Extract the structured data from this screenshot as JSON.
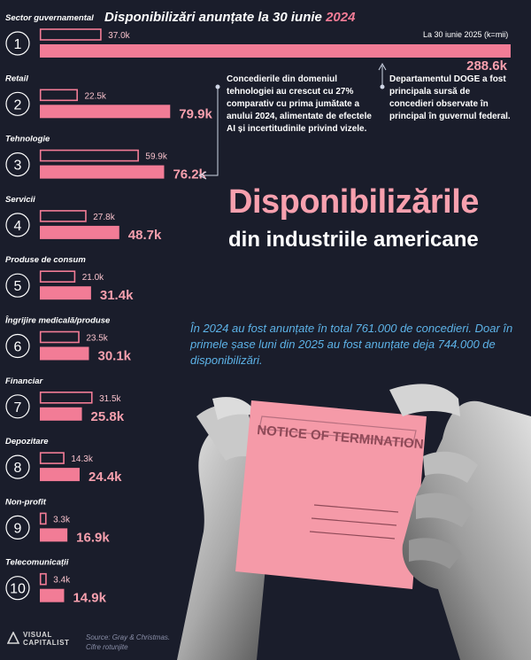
{
  "chart_data": {
    "type": "bar",
    "title": "Disponibilizări anunțate la 30 iunie",
    "title_year": "2024",
    "unit_note": "La 30 iunie 2025 (k=mii)",
    "categories": [
      {
        "rank": "1",
        "name": "Sector guvernamental"
      },
      {
        "rank": "2",
        "name": "Retail"
      },
      {
        "rank": "3",
        "name": "Tehnologie"
      },
      {
        "rank": "4",
        "name": "Servicii"
      },
      {
        "rank": "5",
        "name": "Produse de consum"
      },
      {
        "rank": "6",
        "name": "Îngrijire medicală/produse"
      },
      {
        "rank": "7",
        "name": "Financiar"
      },
      {
        "rank": "8",
        "name": "Depozitare"
      },
      {
        "rank": "9",
        "name": "Non-profit"
      },
      {
        "rank": "10",
        "name": "Telecomunicații"
      }
    ],
    "series": [
      {
        "name": "2024",
        "color": "#f27c96",
        "style": "outline",
        "values": [
          37.0,
          22.5,
          59.9,
          27.8,
          21.0,
          23.5,
          31.5,
          14.3,
          3.3,
          3.4
        ],
        "labels": [
          "37.0k",
          "22.5k",
          "59.9k",
          "27.8k",
          "21.0k",
          "23.5k",
          "31.5k",
          "14.3k",
          "3.3k",
          "3.4k"
        ]
      },
      {
        "color": "#f27c96",
        "style": "filled",
        "values": [
          288.6,
          79.9,
          76.2,
          48.7,
          31.4,
          30.1,
          25.8,
          24.4,
          16.9,
          14.9
        ],
        "labels": [
          "288.6k",
          "79.9k",
          "76.2k",
          "48.7k",
          "31.4k",
          "30.1k",
          "25.8k",
          "24.4k",
          "16.9k",
          "14.9k"
        ]
      }
    ]
  },
  "annotations": {
    "tech": "Concedierile din domeniul tehnologiei au crescut cu 27% comparativ cu prima jumătate a anului 2024, alimentate de efectele AI și incertitudinile privind vizele.",
    "doge": "Departamentul DOGE a fost principala sursă de concedieri observate în principal în guvernul federal."
  },
  "headline": {
    "title": "Disponibilizările",
    "subtitle": "din industriile americane"
  },
  "summary": "În 2024 au fost anunțate în total 761.000 de concedieri. Doar în primele șase luni din 2025 au fost anunțate deja 744.000 de disponibilizări.",
  "illustration": {
    "paper_title": "NOTICE OF TERMINATION",
    "paper_color": "#f59aa8"
  },
  "footer": {
    "logo_line1": "VISUAL",
    "logo_line2": "CAPITALIST",
    "source": "Source: Gray & Christmas.",
    "note": "Cifre rotunjite"
  }
}
